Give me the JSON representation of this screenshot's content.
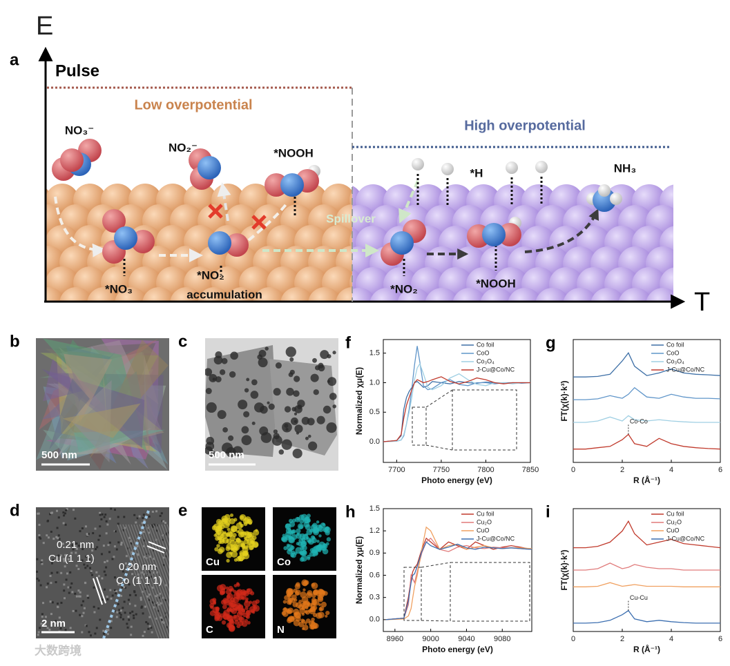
{
  "figure_label": "E",
  "panel_a": {
    "label": "a",
    "y_axis": "Pulse",
    "x_axis": "T",
    "low_region": "Low overpotential",
    "high_region": "High overpotential",
    "species": {
      "no3_solution": "NO₃⁻",
      "no2_solution": "NO₂⁻",
      "nooh_left": "*NOOH",
      "h_ads": "*H",
      "nh3": "NH₃",
      "spillover": "Spillover",
      "no3_ads": "*NO₃",
      "no2_ads_left": "*NO₂",
      "accumulation": "accumulation",
      "no2_ads_right": "*NO₂",
      "nooh_right": "*NOOH"
    }
  },
  "panel_b": {
    "label": "b",
    "scale_bar": "500 nm"
  },
  "panel_c": {
    "label": "c",
    "scale_bar": "500 nm"
  },
  "panel_d": {
    "label": "d",
    "scale_bar": "2 nm",
    "spacing_cu": "0.21 nm",
    "plane_cu": "Cu (1 1 1)",
    "spacing_co": "0.20 nm",
    "plane_co": "Co (1 1 1)"
  },
  "panel_e": {
    "label": "e",
    "maps": [
      "Cu",
      "Co",
      "C",
      "N"
    ]
  },
  "chart_data": [
    {
      "type": "line",
      "label": "f",
      "xlabel": "Photo energy (eV)",
      "ylabel": "Normalized χμ(E)",
      "xlim": [
        7685,
        7850
      ],
      "ylim": [
        -0.35,
        1.73
      ],
      "xticks": [
        7700,
        7750,
        7800,
        7850
      ],
      "yticks": [
        {
          "value": 0,
          "label": "0.0"
        },
        0.5,
        {
          "value": 1,
          "label": "1.0"
        },
        1.5
      ],
      "x": [
        7685,
        7700,
        7705,
        7708,
        7711,
        7714,
        7717,
        7720,
        7723,
        7726,
        7730,
        7735,
        7740,
        7750,
        7760,
        7770,
        7780,
        7790,
        7800,
        7810,
        7820,
        7830,
        7840,
        7850
      ],
      "series": [
        {
          "name": "Co foil",
          "color": "#3d6fa6",
          "values": [
            0,
            0.02,
            0.1,
            0.55,
            0.75,
            0.85,
            0.92,
            1.0,
            1.02,
            0.98,
            0.92,
            0.95,
            1.02,
            1.0,
            0.98,
            1.02,
            1.0,
            0.99,
            1.01,
            1.0,
            0.99,
            1.0,
            1.0,
            1.0
          ]
        },
        {
          "name": "CoO",
          "color": "#5f95c9",
          "values": [
            0,
            0.01,
            0.03,
            0.1,
            0.3,
            0.55,
            0.9,
            1.3,
            1.62,
            1.35,
            0.95,
            0.88,
            0.9,
            1.0,
            1.05,
            0.97,
            0.95,
            1.0,
            1.0,
            0.98,
            1.0,
            1.0,
            0.99,
            1.0
          ]
        },
        {
          "name": "Co₃O₄",
          "color": "#9fcfe3",
          "values": [
            0,
            0.01,
            0.03,
            0.12,
            0.3,
            0.5,
            0.75,
            1.05,
            1.25,
            1.32,
            1.15,
            0.92,
            0.88,
            0.95,
            1.08,
            1.15,
            1.05,
            0.97,
            0.95,
            1.0,
            1.0,
            0.98,
            1.0,
            1.0
          ]
        },
        {
          "name": "J-Cu@Co/NC",
          "color": "#c0392b",
          "values": [
            0,
            0.02,
            0.12,
            0.4,
            0.62,
            0.75,
            0.88,
            1.0,
            1.05,
            1.03,
            1.0,
            1.02,
            1.05,
            1.1,
            1.02,
            0.98,
            1.02,
            1.08,
            1.05,
            1.0,
            0.98,
            1.0,
            1.0,
            1.0
          ]
        }
      ]
    },
    {
      "type": "line",
      "label": "g",
      "xlabel": "R (Å⁻¹)",
      "ylabel": "FT(χ(k)·k³)",
      "annotation": "Co-Co",
      "xlim": [
        0,
        6
      ],
      "ylim": [
        0,
        4.6
      ],
      "xticks": [
        0,
        2,
        4,
        6
      ],
      "x": [
        0,
        0.5,
        1,
        1.5,
        2,
        2.25,
        2.5,
        3,
        3.5,
        4,
        4.5,
        5,
        5.5,
        6
      ],
      "series": [
        {
          "name": "Co foil",
          "color": "#3d6fa6",
          "values": [
            3.2,
            3.2,
            3.22,
            3.3,
            3.8,
            4.1,
            3.6,
            3.25,
            3.35,
            3.5,
            3.35,
            3.3,
            3.28,
            3.25
          ]
        },
        {
          "name": "CoO",
          "color": "#5f95c9",
          "values": [
            2.35,
            2.35,
            2.38,
            2.5,
            2.4,
            2.55,
            2.8,
            2.45,
            2.4,
            2.55,
            2.45,
            2.4,
            2.4,
            2.38
          ]
        },
        {
          "name": "Co₃O₄",
          "color": "#9fcfe3",
          "values": [
            1.5,
            1.5,
            1.55,
            1.7,
            1.55,
            1.75,
            1.6,
            1.55,
            1.6,
            1.55,
            1.52,
            1.5,
            1.5,
            1.5
          ]
        },
        {
          "name": "J-Cu@Co/NC",
          "color": "#c0392b",
          "values": [
            0.5,
            0.5,
            0.55,
            0.6,
            0.85,
            1.05,
            0.7,
            0.6,
            0.9,
            0.7,
            0.6,
            0.55,
            0.52,
            0.5
          ]
        }
      ]
    },
    {
      "type": "line",
      "label": "h",
      "xlabel": "Photo energy (eV)",
      "ylabel": "Normalized χμ(E)",
      "xlim": [
        8947,
        9113
      ],
      "ylim": [
        -0.16,
        1.5
      ],
      "xticks": [
        8960,
        9000,
        9040,
        9080
      ],
      "yticks": [
        {
          "value": 0,
          "label": "0.0"
        },
        0.3,
        0.6,
        0.9,
        1.2,
        1.5
      ],
      "x": [
        8950,
        8970,
        8975,
        8978,
        8980,
        8982,
        8985,
        8990,
        8995,
        9000,
        9010,
        9020,
        9030,
        9040,
        9050,
        9060,
        9070,
        9080,
        9090,
        9100,
        9113
      ],
      "series": [
        {
          "name": "Cu foil",
          "color": "#c0392b",
          "values": [
            0,
            0.02,
            0.3,
            0.55,
            0.65,
            0.7,
            0.75,
            0.95,
            1.1,
            1.05,
            0.95,
            1.05,
            1.0,
            0.95,
            1.05,
            1.0,
            0.95,
            0.98,
            1.0,
            0.98,
            0.95
          ]
        },
        {
          "name": "Cu₂O",
          "color": "#e07a7a",
          "values": [
            0,
            0.02,
            0.2,
            0.6,
            0.55,
            0.5,
            0.65,
            0.9,
            1.05,
            1.1,
            0.95,
            0.92,
            0.98,
            1.0,
            0.97,
            0.96,
            0.98,
            0.97,
            0.97,
            0.96,
            0.95
          ]
        },
        {
          "name": "CuO",
          "color": "#f0a060",
          "values": [
            0,
            0.01,
            0.05,
            0.15,
            0.3,
            0.45,
            0.6,
            0.95,
            1.25,
            1.2,
            0.95,
            1.0,
            1.02,
            0.95,
            0.98,
            1.0,
            0.97,
            0.96,
            0.97,
            0.97,
            0.96
          ]
        },
        {
          "name": "J-Cu@Co/NC",
          "color": "#3b6eb0",
          "values": [
            0,
            0.02,
            0.25,
            0.5,
            0.6,
            0.62,
            0.72,
            0.92,
            1.05,
            1.0,
            0.95,
            0.98,
            1.02,
            0.97,
            0.95,
            0.98,
            0.97,
            0.96,
            0.97,
            0.96,
            0.95
          ]
        }
      ]
    },
    {
      "type": "line",
      "label": "i",
      "xlabel": "R (Å⁻¹)",
      "ylabel": "FT(χ(k)·k³)",
      "annotation": "Cu-Cu",
      "xlim": [
        0,
        6
      ],
      "ylim": [
        0,
        4.4
      ],
      "xticks": [
        0,
        2,
        4,
        6
      ],
      "x": [
        0,
        0.5,
        1,
        1.5,
        2,
        2.25,
        2.5,
        3,
        3.5,
        4,
        4.5,
        5,
        5.5,
        6
      ],
      "series": [
        {
          "name": "Cu foil",
          "color": "#c0392b",
          "values": [
            3.0,
            3.0,
            3.05,
            3.2,
            3.6,
            3.95,
            3.5,
            3.1,
            3.2,
            3.3,
            3.15,
            3.1,
            3.05,
            3.0
          ]
        },
        {
          "name": "Cu₂O",
          "color": "#e07a7a",
          "values": [
            2.2,
            2.2,
            2.25,
            2.45,
            2.25,
            2.3,
            2.4,
            2.3,
            2.25,
            2.25,
            2.2,
            2.2,
            2.2,
            2.2
          ]
        },
        {
          "name": "CuO",
          "color": "#f0a060",
          "values": [
            1.6,
            1.6,
            1.62,
            1.75,
            1.62,
            1.65,
            1.68,
            1.62,
            1.62,
            1.62,
            1.6,
            1.6,
            1.6,
            1.6
          ]
        },
        {
          "name": "J-Cu@Co/NC",
          "color": "#3b6eb0",
          "values": [
            0.3,
            0.3,
            0.32,
            0.4,
            0.6,
            0.75,
            0.45,
            0.35,
            0.4,
            0.35,
            0.32,
            0.3,
            0.3,
            0.3
          ]
        }
      ]
    }
  ],
  "watermark": "大数跨境"
}
